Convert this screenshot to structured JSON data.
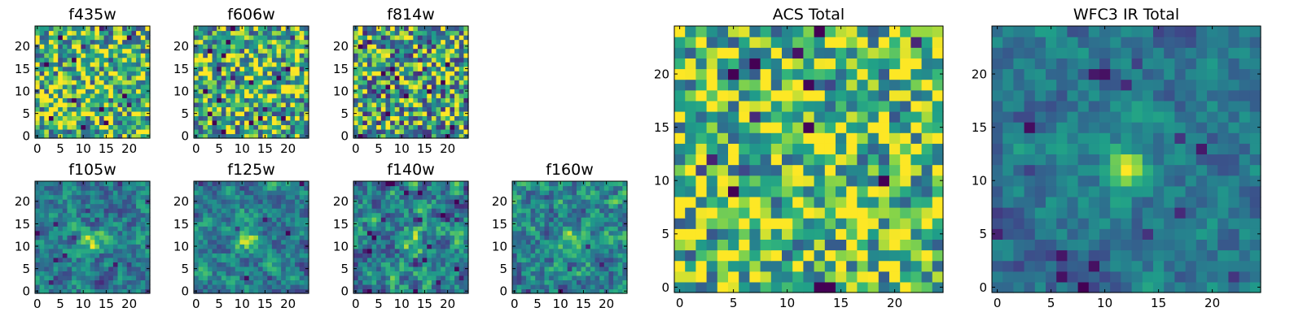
{
  "chart_data": {
    "type": "heatmap",
    "colormap": "viridis",
    "grid": false,
    "panels": [
      {
        "title": "f435w",
        "pattern": "noise",
        "seed": 11,
        "base": 0.7,
        "spread": 0.45,
        "blob": 0.0,
        "xlim": [
          0,
          24
        ],
        "ylim": [
          0,
          24
        ],
        "xticks": [
          0,
          5,
          10,
          15,
          20
        ],
        "yticks": [
          0,
          5,
          10,
          15,
          20
        ],
        "xtick_labels": [
          "0",
          "5",
          "10",
          "15",
          "20"
        ],
        "ytick_labels": [
          "0",
          "5",
          "10",
          "15",
          "20"
        ]
      },
      {
        "title": "f606w",
        "pattern": "noise",
        "seed": 23,
        "base": 0.68,
        "spread": 0.45,
        "blob": 0.0,
        "xlim": [
          0,
          24
        ],
        "ylim": [
          0,
          24
        ],
        "xticks": [
          0,
          5,
          10,
          15,
          20
        ],
        "yticks": [
          0,
          5,
          10,
          15,
          20
        ],
        "xtick_labels": [
          "0",
          "5",
          "10",
          "15",
          "20"
        ],
        "ytick_labels": [
          "0",
          "5",
          "10",
          "15",
          "20"
        ]
      },
      {
        "title": "f814w",
        "pattern": "noise",
        "seed": 37,
        "base": 0.62,
        "spread": 0.5,
        "blob": 0.12,
        "xlim": [
          0,
          24
        ],
        "ylim": [
          0,
          24
        ],
        "xticks": [
          0,
          5,
          10,
          15,
          20
        ],
        "yticks": [
          0,
          5,
          10,
          15,
          20
        ],
        "xtick_labels": [
          "0",
          "5",
          "10",
          "15",
          "20"
        ],
        "ytick_labels": [
          "0",
          "5",
          "10",
          "15",
          "20"
        ]
      },
      {
        "title": "f105w",
        "pattern": "source",
        "seed": 41,
        "base": 0.48,
        "spread": 0.42,
        "blob": 0.45,
        "xlim": [
          0,
          24
        ],
        "ylim": [
          0,
          24
        ],
        "xticks": [
          0,
          5,
          10,
          15,
          20
        ],
        "yticks": [
          0,
          5,
          10,
          15,
          20
        ],
        "xtick_labels": [
          "0",
          "5",
          "10",
          "15",
          "20"
        ],
        "ytick_labels": [
          "0",
          "5",
          "10",
          "15",
          "20"
        ]
      },
      {
        "title": "f125w",
        "pattern": "source",
        "seed": 53,
        "base": 0.5,
        "spread": 0.42,
        "blob": 0.42,
        "xlim": [
          0,
          24
        ],
        "ylim": [
          0,
          24
        ],
        "xticks": [
          0,
          5,
          10,
          15,
          20
        ],
        "yticks": [
          0,
          5,
          10,
          15,
          20
        ],
        "xtick_labels": [
          "0",
          "5",
          "10",
          "15",
          "20"
        ],
        "ytick_labels": [
          "0",
          "5",
          "10",
          "15",
          "20"
        ]
      },
      {
        "title": "f140w",
        "pattern": "source",
        "seed": 67,
        "base": 0.52,
        "spread": 0.5,
        "blob": 0.35,
        "xlim": [
          0,
          24
        ],
        "ylim": [
          0,
          24
        ],
        "xticks": [
          0,
          5,
          10,
          15,
          20
        ],
        "yticks": [
          0,
          5,
          10,
          15,
          20
        ],
        "xtick_labels": [
          "0",
          "5",
          "10",
          "15",
          "20"
        ],
        "ytick_labels": [
          "0",
          "5",
          "10",
          "15",
          "20"
        ]
      },
      {
        "title": "f160w",
        "pattern": "source",
        "seed": 79,
        "base": 0.52,
        "spread": 0.48,
        "blob": 0.38,
        "xlim": [
          0,
          24
        ],
        "ylim": [
          0,
          24
        ],
        "xticks": [
          0,
          5,
          10,
          15,
          20
        ],
        "yticks": [
          0,
          5,
          10,
          15,
          20
        ],
        "xtick_labels": [
          "0",
          "5",
          "10",
          "15",
          "20"
        ],
        "ytick_labels": [
          "0",
          "5",
          "10",
          "15",
          "20"
        ]
      },
      {
        "title": "ACS Total",
        "pattern": "noise",
        "seed": 97,
        "base": 0.72,
        "spread": 0.4,
        "blob": 0.1,
        "xlim": [
          0,
          24
        ],
        "ylim": [
          0,
          24
        ],
        "xticks": [
          0,
          5,
          10,
          15,
          20
        ],
        "yticks": [
          0,
          5,
          10,
          15,
          20
        ],
        "xtick_labels": [
          "0",
          "5",
          "10",
          "15",
          "20"
        ],
        "ytick_labels": [
          "0",
          "5",
          "10",
          "15",
          "20"
        ]
      },
      {
        "title": "WFC3 IR Total",
        "pattern": "source",
        "seed": 113,
        "base": 0.45,
        "spread": 0.3,
        "blob": 0.55,
        "xlim": [
          0,
          24
        ],
        "ylim": [
          0,
          24
        ],
        "xticks": [
          0,
          5,
          10,
          15,
          20
        ],
        "yticks": [
          0,
          5,
          10,
          15,
          20
        ],
        "xtick_labels": [
          "0",
          "5",
          "10",
          "15",
          "20"
        ],
        "ytick_labels": [
          "0",
          "5",
          "10",
          "15",
          "20"
        ]
      }
    ]
  }
}
